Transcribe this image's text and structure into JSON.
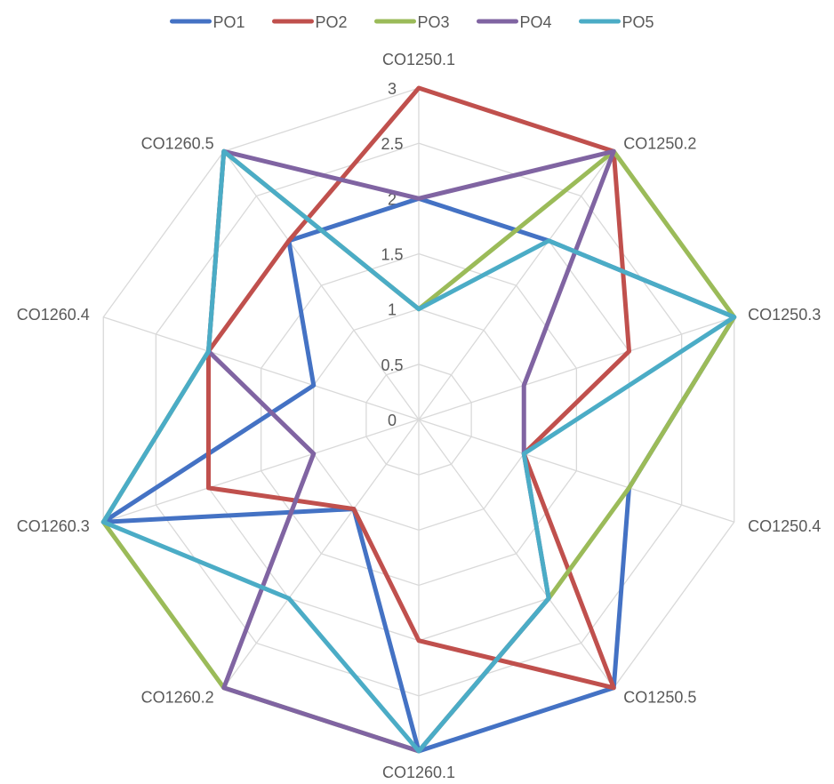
{
  "chart_data": {
    "type": "radar",
    "categories": [
      "CO1250.1",
      "CO1250.2",
      "CO1250.3",
      "CO1250.4",
      "CO1250.5",
      "CO1260.1",
      "CO1260.2",
      "CO1260.3",
      "CO1260.4",
      "CO1260.5"
    ],
    "rlim": [
      0,
      3
    ],
    "ticks": [
      "0",
      "0.5",
      "1",
      "1.5",
      "2",
      "2.5",
      "3"
    ],
    "grid": true,
    "legend_position": "top",
    "series": [
      {
        "name": "PO1",
        "color": "#4472C4",
        "values": [
          2,
          2,
          3,
          2,
          3,
          3,
          1,
          3,
          1,
          2
        ]
      },
      {
        "name": "PO2",
        "color": "#C0504D",
        "values": [
          3,
          3,
          2,
          1,
          3,
          2,
          1,
          2,
          2,
          2
        ]
      },
      {
        "name": "PO3",
        "color": "#9BBB59",
        "values": [
          1,
          3,
          3,
          2,
          2,
          3,
          3,
          3,
          2,
          3
        ]
      },
      {
        "name": "PO4",
        "color": "#8064A2",
        "values": [
          2,
          3,
          1,
          1,
          2,
          3,
          3,
          1,
          2,
          3
        ]
      },
      {
        "name": "PO5",
        "color": "#4BACC6",
        "values": [
          1,
          2,
          3,
          1,
          2,
          3,
          2,
          3,
          2,
          3
        ]
      }
    ]
  }
}
